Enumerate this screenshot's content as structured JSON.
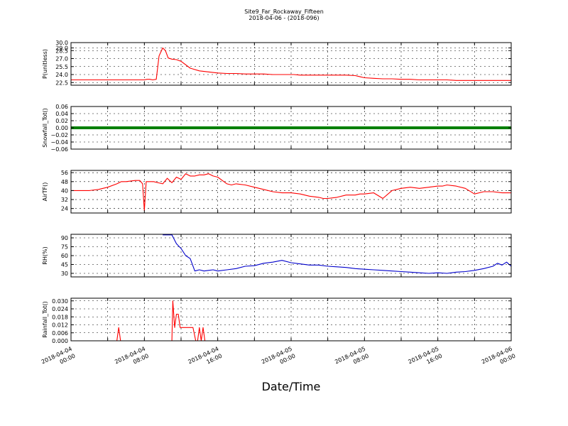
{
  "figure": {
    "title": "Site9_Far_Rockaway_Fifteen",
    "subtitle": "2018-04-06 - (2018-096)",
    "xlabel": "Date/Time"
  },
  "chart_data": [
    {
      "type": "line",
      "ylabel": "P(unitless)",
      "ylim": [
        22.0,
        30.0
      ],
      "yticks": [
        "30.0",
        "29.0",
        "28.5",
        "27.0",
        "25.5",
        "24.0",
        "22.5"
      ],
      "ytick_values": [
        30.0,
        29.0,
        28.5,
        27.0,
        25.5,
        24.0,
        22.5
      ],
      "color": "#ff0000",
      "grid": true,
      "x": [
        0,
        1,
        2,
        3,
        4,
        5,
        6,
        7,
        8,
        8.3,
        8.6,
        8.9,
        9.3,
        9.6,
        10.0,
        10.3,
        10.6,
        11,
        11.5,
        12,
        13,
        14,
        15,
        16,
        17,
        18,
        19,
        20,
        21,
        22,
        23,
        24,
        24.3,
        25,
        26,
        27,
        28,
        29,
        30,
        31,
        32,
        33,
        34,
        35,
        36,
        37,
        38,
        39,
        40,
        41,
        42,
        43,
        44,
        45,
        46,
        47,
        48
      ],
      "y": [
        23.0,
        23.0,
        23.0,
        23.0,
        23.0,
        23.0,
        23.0,
        23.0,
        23.0,
        23.1,
        23.1,
        23.0,
        23.1,
        27.5,
        29.0,
        28.5,
        27.1,
        26.9,
        26.8,
        26.5,
        25.2,
        24.7,
        24.5,
        24.3,
        24.2,
        24.2,
        24.1,
        24.1,
        24.1,
        24.0,
        24.0,
        24.0,
        24.0,
        23.9,
        23.9,
        23.9,
        23.9,
        23.9,
        23.9,
        23.8,
        23.4,
        23.3,
        23.2,
        23.2,
        23.1,
        23.1,
        23.0,
        23.0,
        23.0,
        23.0,
        22.9,
        22.9,
        22.9,
        22.9,
        22.9,
        22.9,
        22.9
      ]
    },
    {
      "type": "line",
      "ylabel": "Snowfall_Tot()",
      "ylim": [
        -0.06,
        0.06
      ],
      "yticks": [
        "0.06",
        "0.04",
        "0.02",
        "0.00",
        "−0.02",
        "−0.04",
        "−0.06"
      ],
      "ytick_values": [
        0.06,
        0.04,
        0.02,
        0.0,
        -0.02,
        -0.04,
        -0.06
      ],
      "color": "#008000",
      "grid": true,
      "x": [
        0,
        48
      ],
      "y": [
        0.0,
        0.0
      ]
    },
    {
      "type": "line",
      "ylabel": "AirTF()",
      "ylim": [
        20,
        58
      ],
      "yticks": [
        "56",
        "48",
        "40",
        "32",
        "24"
      ],
      "ytick_values": [
        56,
        48,
        40,
        32,
        24
      ],
      "color": "#ff0000",
      "grid": true,
      "x": [
        0,
        1,
        2,
        3,
        4,
        5,
        5.5,
        6,
        7,
        7.5,
        7.8,
        8.0,
        8.2,
        8.5,
        9,
        9.5,
        10,
        10.5,
        11,
        11.5,
        12,
        12.5,
        13,
        13.5,
        14,
        14.5,
        15,
        15.5,
        16,
        16.5,
        17,
        17.5,
        18,
        19,
        20,
        21,
        22,
        23,
        24,
        25,
        26,
        27,
        27.5,
        28,
        29,
        30,
        31,
        31.5,
        32,
        33,
        34,
        35,
        36,
        37,
        38,
        39,
        40,
        40.5,
        41,
        42,
        43,
        44,
        45,
        46,
        47,
        48
      ],
      "y": [
        40,
        40,
        40,
        41,
        43,
        46,
        48,
        48,
        49,
        49,
        46,
        22,
        48,
        48,
        48,
        47,
        46,
        51,
        47,
        52,
        50,
        55,
        53,
        53,
        54,
        54,
        55,
        53,
        52,
        49,
        46,
        45,
        46,
        45,
        43,
        41,
        39,
        38,
        38,
        37,
        35,
        34,
        33,
        33,
        34,
        36,
        36,
        37,
        37,
        38,
        33,
        40,
        42,
        43,
        42,
        43,
        44,
        44,
        45,
        44,
        42,
        37,
        39,
        39,
        38,
        38
      ]
    },
    {
      "type": "line",
      "ylabel": "RH(%)",
      "ylim": [
        24,
        96
      ],
      "yticks": [
        "90",
        "75",
        "60",
        "45",
        "30"
      ],
      "ytick_values": [
        90,
        75,
        60,
        45,
        30
      ],
      "color": "#0000cc",
      "grid": true,
      "x": [
        10,
        10.5,
        11,
        11.5,
        12,
        12.5,
        13,
        13.5,
        14,
        14.5,
        15,
        15.5,
        16,
        17,
        18,
        19,
        20,
        21,
        22,
        23,
        24,
        25,
        26,
        27,
        28,
        29,
        30,
        31,
        32,
        33,
        34,
        35,
        36,
        37,
        38,
        39,
        40,
        41,
        42,
        43,
        44,
        45,
        46,
        46.5,
        47,
        47.5,
        48
      ],
      "y": [
        95,
        95,
        95,
        80,
        72,
        60,
        55,
        34,
        36,
        34,
        35,
        36,
        34,
        36,
        38,
        42,
        43,
        47,
        49,
        52,
        48,
        46,
        44,
        44,
        42,
        41,
        40,
        38,
        37,
        36,
        35,
        34,
        33,
        32,
        31,
        30,
        31,
        30,
        32,
        33,
        35,
        38,
        42,
        47,
        44,
        49,
        42
      ]
    },
    {
      "type": "line",
      "ylabel": "Rainfall_Tot()",
      "ylim": [
        0.0,
        0.032
      ],
      "yticks": [
        "0.030",
        "0.024",
        "0.018",
        "0.012",
        "0.006",
        "0.000"
      ],
      "ytick_values": [
        0.03,
        0.024,
        0.018,
        0.012,
        0.006,
        0.0
      ],
      "color": "#ff0000",
      "grid": true,
      "x": [
        0,
        1,
        2,
        3,
        4,
        5,
        5.2,
        5.4,
        5.6,
        6,
        7,
        8,
        9,
        10,
        11,
        11.1,
        11.3,
        11.5,
        11.7,
        11.9,
        12.1,
        12.5,
        13,
        13.3,
        13.6,
        13.8,
        14,
        14.2,
        14.4,
        14.6,
        14.8,
        15,
        16,
        17,
        18,
        19,
        20,
        21,
        22,
        23,
        24,
        25,
        26,
        27,
        28,
        29,
        30,
        31,
        32,
        33,
        34,
        35,
        36,
        37,
        38,
        39,
        40,
        41,
        42,
        43,
        44,
        45,
        46,
        47,
        48
      ],
      "y": [
        0,
        0,
        0,
        0,
        0,
        0,
        0.01,
        0,
        0,
        0,
        0,
        0,
        0,
        0,
        0,
        0.03,
        0.01,
        0.02,
        0.02,
        0.01,
        0.01,
        0.01,
        0.01,
        0.01,
        0,
        0,
        0.01,
        0,
        0.01,
        0,
        0,
        0,
        0,
        0,
        0,
        0,
        0,
        0,
        0,
        0,
        0,
        0,
        0,
        0,
        0,
        0,
        0,
        0,
        0,
        0,
        0,
        0,
        0,
        0,
        0,
        0,
        0,
        0,
        0,
        0,
        0,
        0,
        0,
        0,
        0
      ]
    }
  ],
  "x_axis": {
    "xlim": [
      0,
      48
    ],
    "ticks": [
      {
        "value": 0,
        "line1": "2018-04-04",
        "line2": "00:00"
      },
      {
        "value": 8,
        "line1": "2018-04-04",
        "line2": "08:00"
      },
      {
        "value": 16,
        "line1": "2018-04-04",
        "line2": "16:00"
      },
      {
        "value": 24,
        "line1": "2018-04-05",
        "line2": "00:00"
      },
      {
        "value": 32,
        "line1": "2018-04-05",
        "line2": "08:00"
      },
      {
        "value": 40,
        "line1": "2018-04-05",
        "line2": "16:00"
      },
      {
        "value": 48,
        "line1": "2018-04-06",
        "line2": "00:00"
      }
    ]
  }
}
